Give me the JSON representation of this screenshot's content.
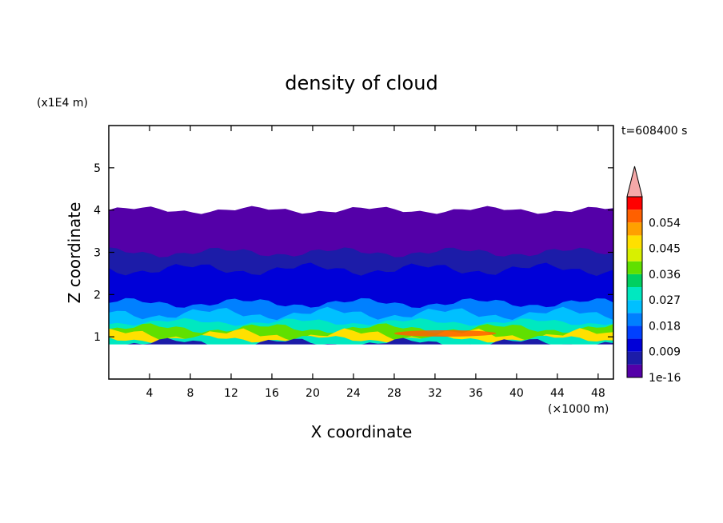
{
  "chart_data": {
    "type": "heatmap",
    "title": "density of cloud",
    "xlabel": "X coordinate",
    "ylabel": "Z coordinate",
    "x_unit": "(×1000 m)",
    "y_unit": "(x1E4 m)",
    "time_label": "t=608400 s",
    "xlim": [
      0,
      49.5
    ],
    "ylim": [
      0,
      6
    ],
    "x_ticks": [
      4,
      8,
      12,
      16,
      20,
      24,
      28,
      32,
      36,
      40,
      44,
      48
    ],
    "y_ticks": [
      1,
      2,
      3,
      4,
      5
    ],
    "colorbar": {
      "levels": [
        1e-16,
        0.0045,
        0.009,
        0.0135,
        0.018,
        0.0225,
        0.027,
        0.0315,
        0.036,
        0.0405,
        0.045,
        0.0495,
        0.054,
        0.0585
      ],
      "labels": [
        "1e-16",
        "0.009",
        "0.018",
        "0.027",
        "0.036",
        "0.045",
        "0.054"
      ],
      "colors": [
        "#5400a8",
        "#1c1ca8",
        "#0000d8",
        "#0040ff",
        "#0080ff",
        "#00c0ff",
        "#00e8c0",
        "#00d060",
        "#60e000",
        "#d8f000",
        "#ffe000",
        "#ffa000",
        "#ff6000",
        "#ff0000"
      ],
      "extend_color": "#f5a8a8"
    },
    "vertical_profile": [
      {
        "z_top": 4.0,
        "value": 0.001
      },
      {
        "z_top": 3.0,
        "value": 0.005
      },
      {
        "z_top": 2.6,
        "value": 0.009
      },
      {
        "z_top": 2.2,
        "value": 0.013
      },
      {
        "z_top": 1.8,
        "value": 0.018
      },
      {
        "z_top": 1.55,
        "value": 0.023
      },
      {
        "z_top": 1.35,
        "value": 0.029
      },
      {
        "z_top": 1.2,
        "value": 0.038
      },
      {
        "z_top": 1.05,
        "value": 0.045
      },
      {
        "z_top": 0.95,
        "value": 0.027
      },
      {
        "z_top": 0.85,
        "value": 0.008
      }
    ],
    "max_region": {
      "x_range": [
        28,
        38
      ],
      "z": 1.08,
      "value": 0.054
    }
  }
}
